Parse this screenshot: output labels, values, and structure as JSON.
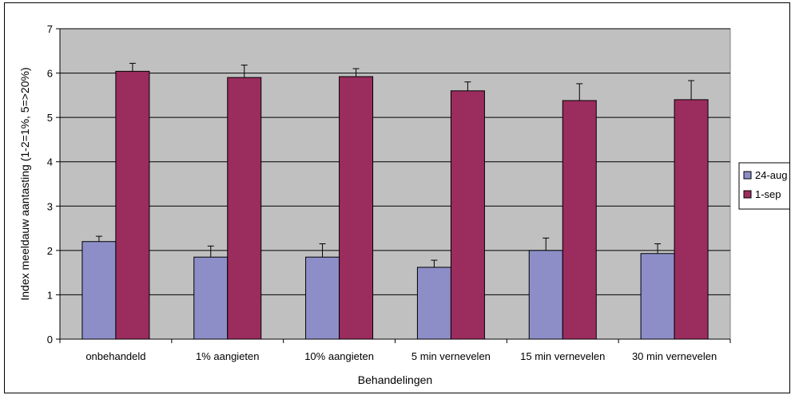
{
  "chart_data": {
    "type": "bar",
    "categories": [
      "onbehandeld",
      "1% aangieten",
      "10% aangieten",
      "5 min vernevelen",
      "15 min vernevelen",
      "30 min vernevelen"
    ],
    "series": [
      {
        "name": "24-aug",
        "color": "#8d8ec8",
        "values": [
          2.2,
          1.85,
          1.85,
          1.62,
          2.0,
          1.93
        ],
        "errors": [
          0.12,
          0.25,
          0.3,
          0.16,
          0.28,
          0.22
        ]
      },
      {
        "name": "1-sep",
        "color": "#9b2c5e",
        "values": [
          6.04,
          5.9,
          5.92,
          5.6,
          5.38,
          5.4
        ],
        "errors": [
          0.18,
          0.28,
          0.18,
          0.2,
          0.38,
          0.43
        ]
      }
    ],
    "title": "",
    "xlabel": "Behandelingen",
    "ylabel": "Index meeldauw aantasting (1-2=1%, 5=>20%)",
    "ylim": [
      0,
      7
    ],
    "yticks": [
      "0",
      "1",
      "2",
      "3",
      "4",
      "5",
      "6",
      "7"
    ],
    "grid": true,
    "plot_background": "#c0c0c0",
    "legend_position": "right"
  }
}
